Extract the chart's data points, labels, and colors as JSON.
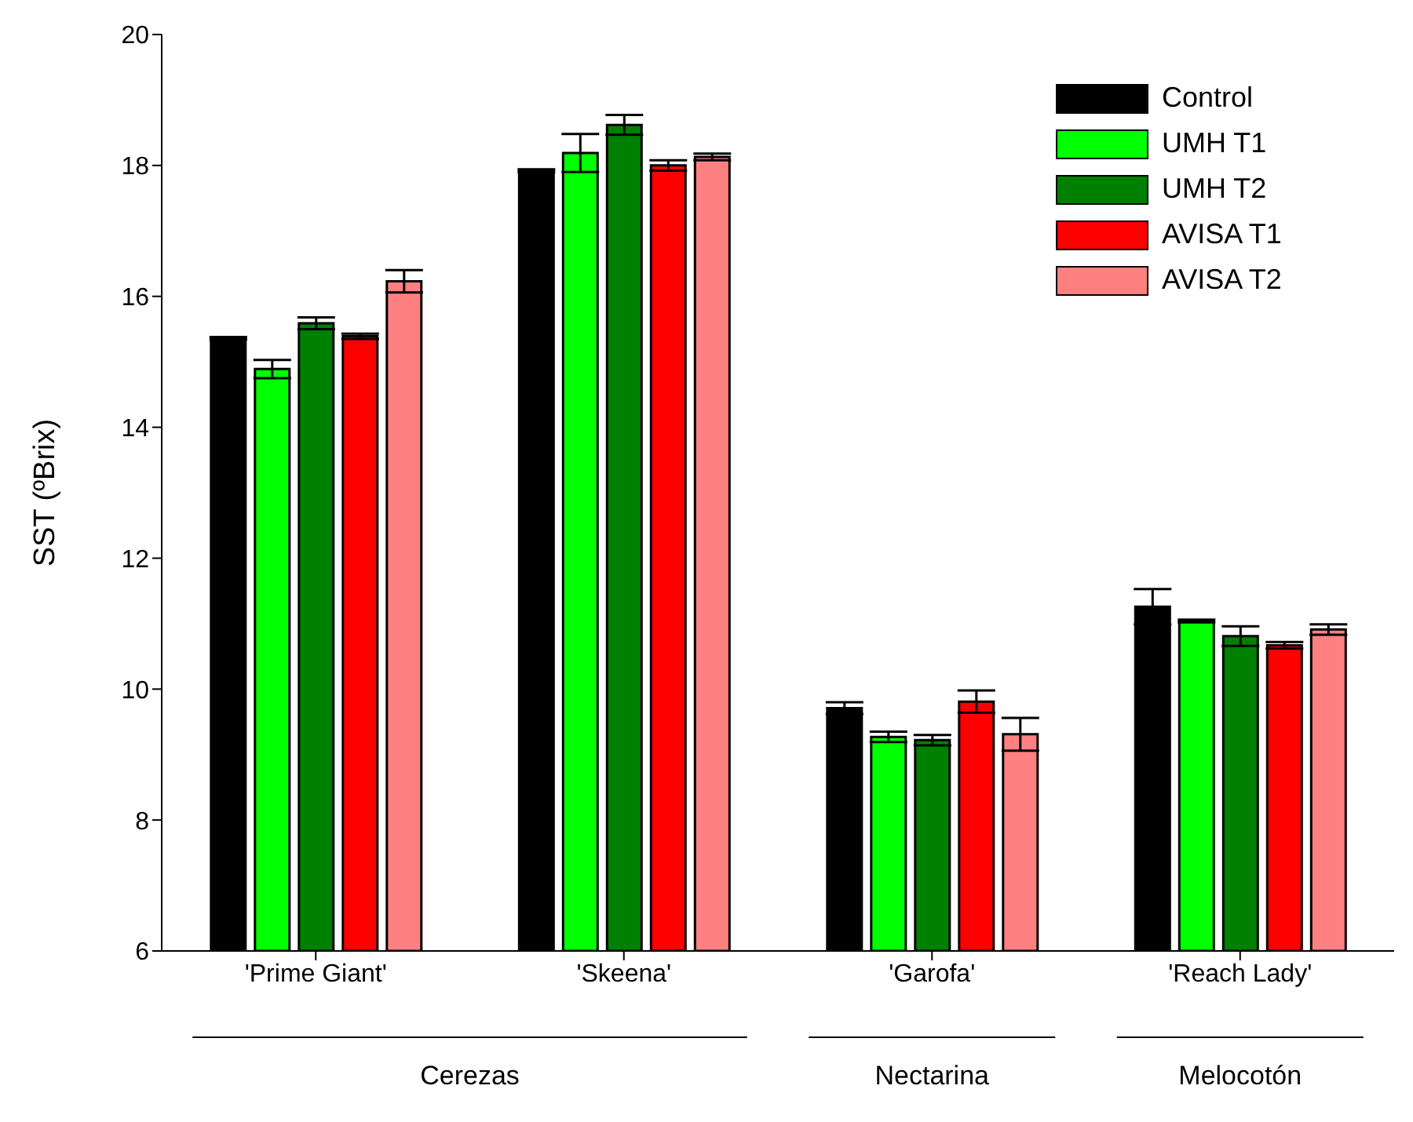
{
  "chart_data": {
    "type": "bar",
    "ylabel": "SST (ºBrix)",
    "categories": [
      "'Prime Giant'",
      "'Skeena'",
      "'Garofa'",
      "'Reach Lady'"
    ],
    "series": [
      {
        "name": "Control",
        "color": "#000000",
        "values": [
          15.36,
          17.92,
          9.71,
          11.26
        ],
        "errors": [
          0.02,
          0.02,
          0.09,
          0.27
        ]
      },
      {
        "name": "UMH T1",
        "color": "#00ff00",
        "values": [
          14.89,
          18.19,
          9.27,
          11.04
        ],
        "errors": [
          0.14,
          0.29,
          0.08,
          0.02
        ]
      },
      {
        "name": "UMH T2",
        "color": "#008000",
        "values": [
          15.59,
          18.62,
          9.22,
          10.81
        ],
        "errors": [
          0.09,
          0.15,
          0.08,
          0.15
        ]
      },
      {
        "name": "AVISA T1",
        "color": "#ff0000",
        "values": [
          15.39,
          18.0,
          9.81,
          10.67
        ],
        "errors": [
          0.04,
          0.08,
          0.17,
          0.05
        ]
      },
      {
        "name": "AVISA T2",
        "color": "#ff8080",
        "values": [
          16.23,
          18.13,
          9.31,
          10.91
        ],
        "errors": [
          0.17,
          0.05,
          0.25,
          0.08
        ]
      }
    ],
    "ylim": [
      6,
      20
    ],
    "yticks": [
      6,
      8,
      10,
      12,
      14,
      16,
      18,
      20
    ],
    "grid": false,
    "legend": "top right",
    "annotations": [
      "Cerezas",
      "Nectarina",
      "Melocotón"
    ]
  }
}
